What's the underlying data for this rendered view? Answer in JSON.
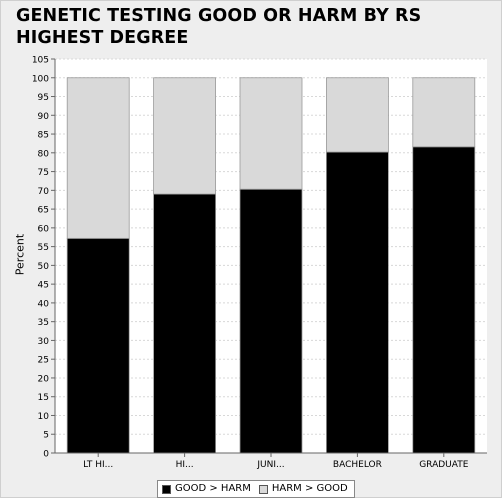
{
  "title": "GENETIC TESTING GOOD OR HARM BY RS HIGHEST DEGREE",
  "chart_data": {
    "type": "bar",
    "stacked": true,
    "title": "GENETIC TESTING GOOD OR HARM BY RS HIGHEST DEGREE",
    "xlabel": "",
    "ylabel": "Percent",
    "ylim": [
      0,
      105
    ],
    "yticks": [
      0,
      5,
      10,
      15,
      20,
      25,
      30,
      35,
      40,
      45,
      50,
      55,
      60,
      65,
      70,
      75,
      80,
      85,
      90,
      95,
      100,
      105
    ],
    "categories": [
      "LT HI...",
      "HI...",
      "JUNI...",
      "BACHELOR",
      "GRADUATE"
    ],
    "series": [
      {
        "name": "GOOD > HARM",
        "color": "#000000",
        "values": [
          57.2,
          69.0,
          70.3,
          80.2,
          81.6
        ]
      },
      {
        "name": "HARM > GOOD",
        "color": "#d9d9d9",
        "values": [
          42.8,
          31.0,
          29.7,
          19.8,
          18.4
        ]
      }
    ],
    "grid": true,
    "legend": "bottom-center"
  }
}
